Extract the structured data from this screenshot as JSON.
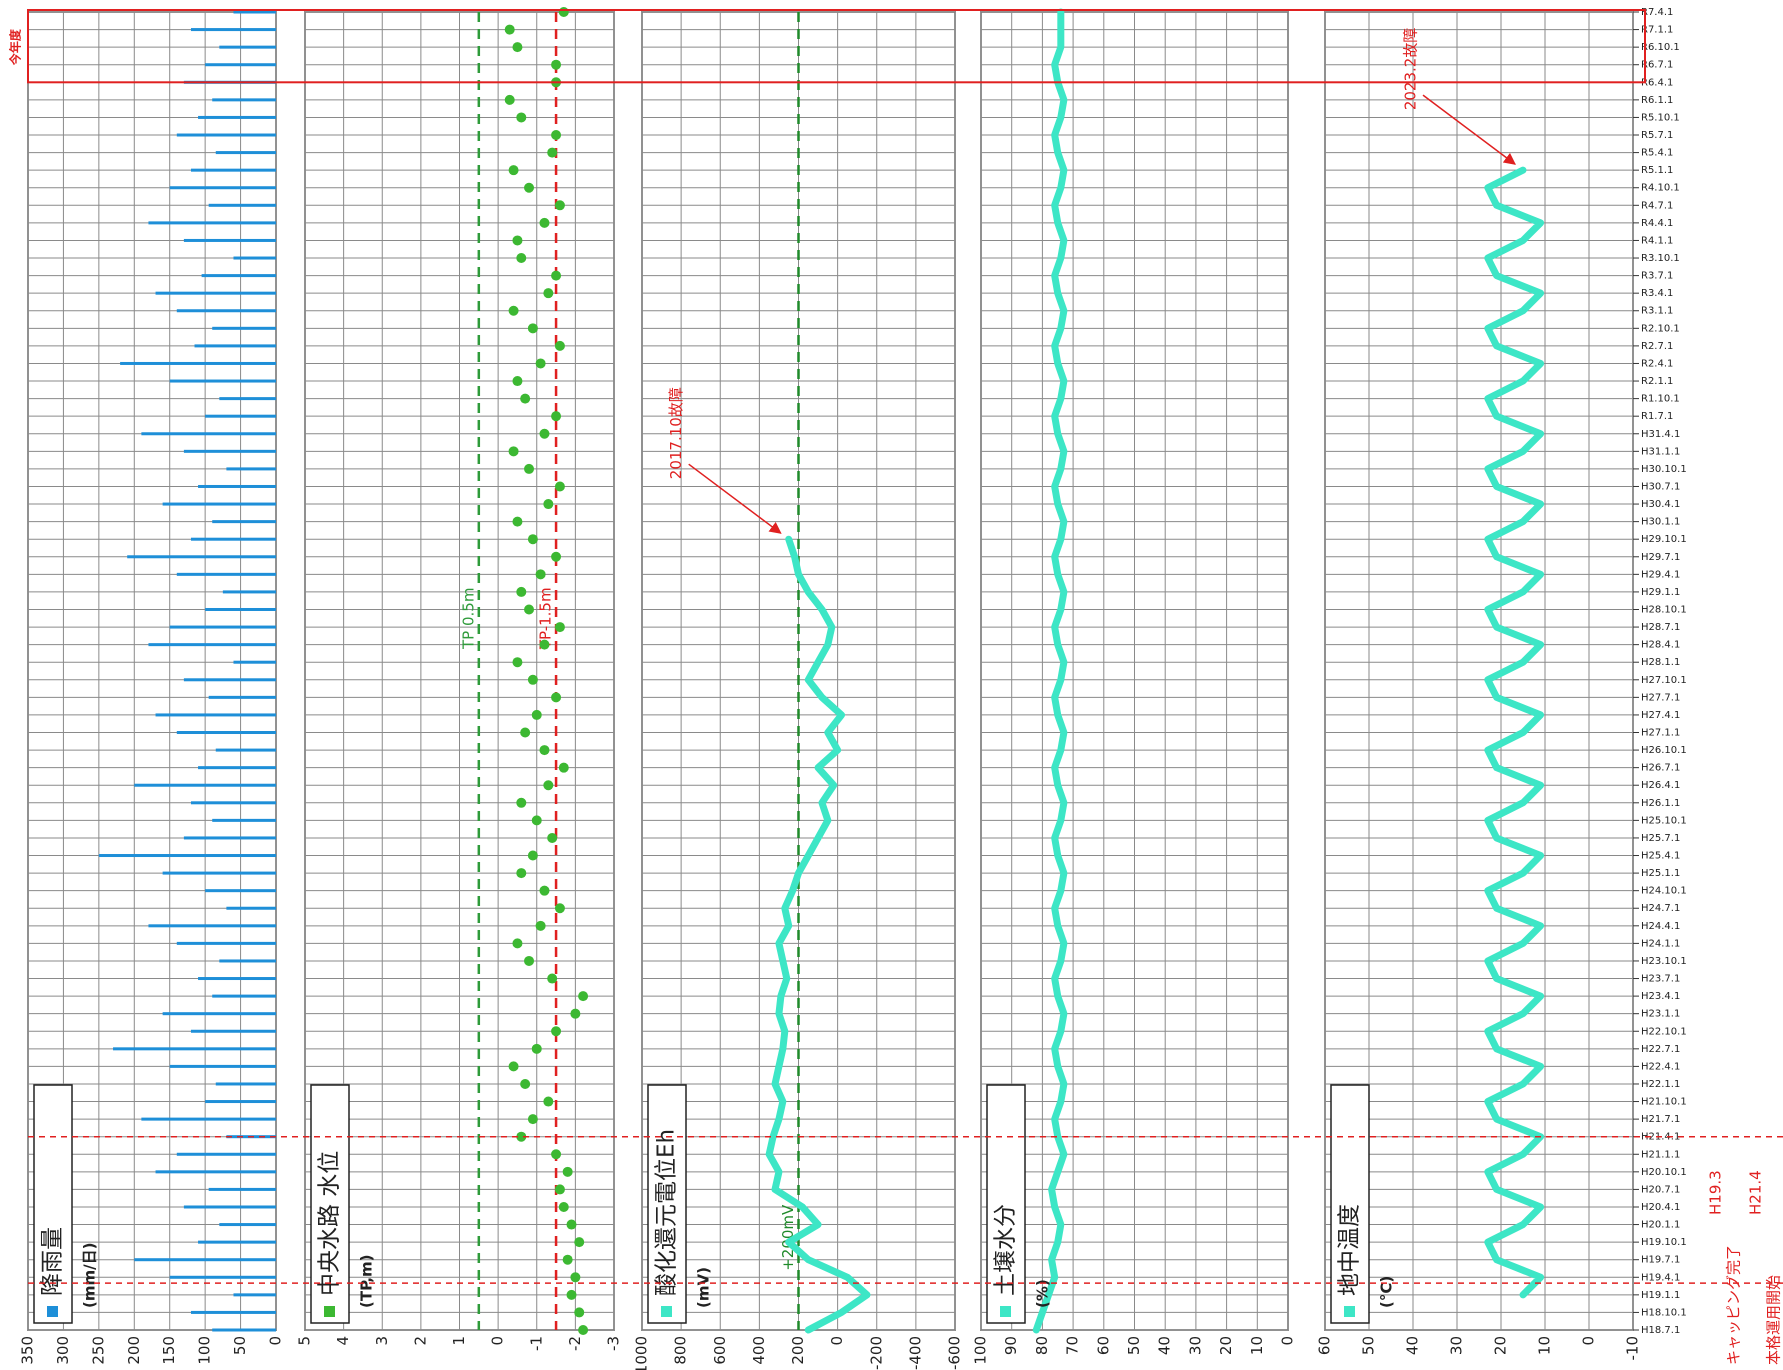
{
  "time_categories": [
    "H18.7.1",
    "H18.10.1",
    "H19.1.1",
    "H19.4.1",
    "H19.7.1",
    "H19.10.1",
    "H20.1.1",
    "H20.4.1",
    "H20.7.1",
    "H20.10.1",
    "H21.1.1",
    "H21.4.1",
    "H21.7.1",
    "H21.10.1",
    "H22.1.1",
    "H22.4.1",
    "H22.7.1",
    "H22.10.1",
    "H23.1.1",
    "H23.4.1",
    "H23.7.1",
    "H23.10.1",
    "H24.1.1",
    "H24.4.1",
    "H24.7.1",
    "H24.10.1",
    "H25.1.1",
    "H25.4.1",
    "H25.7.1",
    "H25.10.1",
    "H26.1.1",
    "H26.4.1",
    "H26.7.1",
    "H26.10.1",
    "H27.1.1",
    "H27.4.1",
    "H27.7.1",
    "H27.10.1",
    "H28.1.1",
    "H28.4.1",
    "H28.7.1",
    "H28.10.1",
    "H29.1.1",
    "H29.4.1",
    "H29.7.1",
    "H29.10.1",
    "H30.1.1",
    "H30.4.1",
    "H30.7.1",
    "H30.10.1",
    "H31.1.1",
    "H31.4.1",
    "R1.7.1",
    "R1.10.1",
    "R2.1.1",
    "R2.4.1",
    "R2.7.1",
    "R2.10.1",
    "R3.1.1",
    "R3.4.1",
    "R3.7.1",
    "R3.10.1",
    "R4.1.1",
    "R4.4.1",
    "R4.7.1",
    "R4.10.1",
    "R5.1.1",
    "R5.4.1",
    "R5.7.1",
    "R5.10.1",
    "R6.1.1",
    "R6.4.1",
    "R6.7.1",
    "R6.10.1",
    "R7.1.1",
    "R7.4.1"
  ],
  "current_period": {
    "label": "今年度",
    "from": "R6.4.1"
  },
  "events": [
    {
      "date": "H19.3",
      "label": "キャッピング完了"
    },
    {
      "date": "H21.4",
      "label": "本格運用開始"
    }
  ],
  "chart_data": [
    {
      "type": "bar",
      "unit": "(mm/日)",
      "ylim": [
        0,
        350
      ],
      "yticks": [
        0,
        50,
        100,
        150,
        200,
        250,
        300,
        350
      ],
      "series": [
        {
          "name": "降雨量",
          "color": "#1e8fd8",
          "values": [
            90,
            120,
            60,
            150,
            200,
            110,
            80,
            130,
            95,
            170,
            140,
            70,
            190,
            100,
            85,
            150,
            230,
            120,
            160,
            90,
            110,
            80,
            140,
            180,
            70,
            100,
            160,
            250,
            130,
            90,
            120,
            200,
            110,
            85,
            140,
            170,
            95,
            130,
            60,
            180,
            150,
            100,
            75,
            140,
            210,
            120,
            90,
            160,
            110,
            70,
            130,
            190,
            100,
            80,
            150,
            220,
            115,
            90,
            140,
            170,
            105,
            60,
            130,
            180,
            95,
            150,
            120,
            85,
            140,
            110,
            90,
            130,
            100,
            80,
            120,
            60
          ]
        }
      ]
    },
    {
      "type": "scatter",
      "unit": "(TP,m)",
      "ylim": [
        -3,
        5
      ],
      "yticks": [
        -3,
        -2,
        -1,
        0,
        1,
        2,
        3,
        4,
        5
      ],
      "reference_lines": [
        {
          "value": 0.5,
          "label": "TP 0.5m",
          "color": "#2e9b3a"
        },
        {
          "value": -1.5,
          "label": "TP-1.5m",
          "color": "#e02020"
        }
      ],
      "series": [
        {
          "name": "中央水路 水位",
          "color": "#3cb832",
          "values": [
            -2.2,
            -2.1,
            -1.9,
            -2.0,
            -1.8,
            -2.1,
            -1.9,
            -1.7,
            -1.6,
            -1.8,
            -1.5,
            -0.6,
            -0.9,
            -1.3,
            -0.7,
            -0.4,
            -1.0,
            -1.5,
            -2.0,
            -2.2,
            -1.4,
            -0.8,
            -0.5,
            -1.1,
            -1.6,
            -1.2,
            -0.6,
            -0.9,
            -1.4,
            -1.0,
            -0.6,
            -1.3,
            -1.7,
            -1.2,
            -0.7,
            -1.0,
            -1.5,
            -0.9,
            -0.5,
            -1.2,
            -1.6,
            -0.8,
            -0.6,
            -1.1,
            -1.5,
            -0.9,
            -0.5,
            -1.3,
            -1.6,
            -0.8,
            -0.4,
            -1.2,
            -1.5,
            -0.7,
            -0.5,
            -1.1,
            -1.6,
            -0.9,
            -0.4,
            -1.3,
            -1.5,
            -0.6,
            -0.5,
            -1.2,
            -1.6,
            -0.8,
            -0.4,
            -1.4,
            -1.5,
            -0.6,
            -0.3,
            -1.5,
            -1.5,
            -0.5,
            -0.3,
            -1.7
          ]
        }
      ]
    },
    {
      "type": "line",
      "unit": "(mV)",
      "ylim": [
        -600,
        1000
      ],
      "yticks": [
        -600,
        -400,
        -200,
        0,
        200,
        400,
        600,
        800,
        1000
      ],
      "reference_lines": [
        {
          "value": 200,
          "label": "+200mV",
          "color": "#1f8a2a"
        }
      ],
      "annotation": {
        "text": "2017.10故障",
        "color": "#e02020"
      },
      "series": [
        {
          "name": "酸化還元電位Eh",
          "color": "#3de6c6",
          "values": [
            150,
            -20,
            -150,
            -50,
            150,
            250,
            100,
            180,
            320,
            300,
            350,
            330,
            300,
            280,
            320,
            300,
            280,
            270,
            300,
            290,
            260,
            280,
            300,
            250,
            270,
            230,
            200,
            150,
            100,
            50,
            80,
            20,
            100,
            0,
            50,
            -20,
            80,
            150,
            100,
            50,
            30,
            80,
            150,
            200,
            220,
            250,
            null,
            null,
            null,
            null,
            null,
            null,
            null,
            null,
            null,
            null,
            null,
            null,
            null,
            null,
            null,
            null,
            null,
            null,
            null,
            null,
            null,
            null,
            null,
            null,
            null,
            null,
            null,
            null,
            null,
            null
          ]
        }
      ]
    },
    {
      "type": "line",
      "unit": "(%)",
      "ylim": [
        0,
        100
      ],
      "yticks": [
        0,
        10,
        20,
        30,
        40,
        50,
        60,
        70,
        80,
        90,
        100
      ],
      "series": [
        {
          "name": "土壌水分",
          "color": "#3de6c6",
          "values": [
            82,
            80,
            78,
            76,
            77,
            75,
            74,
            76,
            77,
            75,
            73,
            75,
            76,
            74,
            73,
            75,
            76,
            74,
            73,
            75,
            76,
            74,
            73,
            75,
            76,
            74,
            73,
            75,
            76,
            74,
            73,
            75,
            76,
            74,
            73,
            75,
            76,
            74,
            73,
            75,
            76,
            74,
            73,
            75,
            76,
            74,
            73,
            75,
            76,
            74,
            73,
            75,
            76,
            74,
            73,
            75,
            76,
            74,
            73,
            75,
            76,
            74,
            73,
            75,
            76,
            74,
            73,
            75,
            76,
            74,
            73,
            75,
            76,
            74,
            74,
            74
          ]
        }
      ]
    },
    {
      "type": "line",
      "unit": "(°C)",
      "ylim": [
        -10,
        60
      ],
      "yticks": [
        -10,
        0,
        10,
        20,
        30,
        40,
        50,
        60
      ],
      "annotation": {
        "text": "2023.2故障",
        "color": "#e02020"
      },
      "series": [
        {
          "name": "地中温度",
          "color": "#3de6c6",
          "values": [
            null,
            null,
            15,
            11,
            21,
            23,
            15,
            11,
            21,
            23,
            15,
            11,
            21,
            23,
            15,
            11,
            21,
            23,
            15,
            11,
            21,
            23,
            15,
            11,
            21,
            23,
            15,
            11,
            21,
            23,
            15,
            11,
            21,
            23,
            15,
            11,
            21,
            23,
            15,
            11,
            21,
            23,
            15,
            11,
            21,
            23,
            15,
            11,
            21,
            23,
            15,
            11,
            21,
            23,
            15,
            11,
            21,
            23,
            15,
            11,
            21,
            23,
            15,
            11,
            21,
            23,
            15,
            null,
            null,
            null,
            null,
            null,
            null,
            null,
            null,
            null
          ]
        }
      ]
    }
  ]
}
